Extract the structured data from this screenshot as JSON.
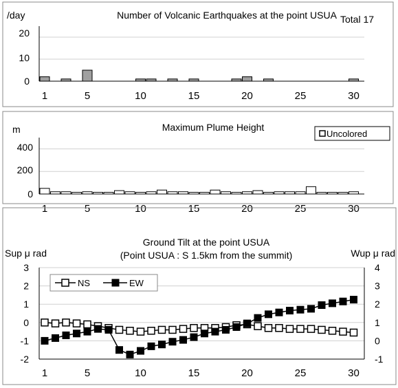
{
  "chart_data": [
    {
      "type": "bar",
      "title": "Number of Volcanic Earthquakes at the point USUA",
      "ylabel": "/day",
      "annotation": "Total 17",
      "x": [
        1,
        2,
        3,
        4,
        5,
        6,
        7,
        8,
        9,
        10,
        11,
        12,
        13,
        14,
        15,
        16,
        17,
        18,
        19,
        20,
        21,
        22,
        23,
        24,
        25,
        26,
        27,
        28,
        29,
        30
      ],
      "values": [
        2,
        0,
        1,
        0,
        5,
        0,
        0,
        0,
        0,
        1,
        1,
        0,
        1,
        0,
        1,
        0,
        0,
        0,
        1,
        2,
        0,
        1,
        0,
        0,
        0,
        0,
        0,
        0,
        0,
        1
      ],
      "ylim": [
        0,
        25
      ],
      "yticks": [
        "0",
        "10",
        "20"
      ],
      "xticks": [
        "1",
        "5",
        "10",
        "15",
        "20",
        "25",
        "30"
      ],
      "grid": true,
      "bar_fill": "#a0a0a0"
    },
    {
      "type": "bar",
      "title": "Maximum Plume Height",
      "ylabel": "m",
      "legend": [
        "Uncolored"
      ],
      "legend_position": "top-right",
      "x": [
        1,
        2,
        3,
        4,
        5,
        6,
        7,
        8,
        9,
        10,
        11,
        12,
        13,
        14,
        15,
        16,
        17,
        18,
        19,
        20,
        21,
        22,
        23,
        24,
        25,
        26,
        27,
        28,
        29,
        30
      ],
      "values": [
        50,
        20,
        20,
        15,
        20,
        15,
        15,
        30,
        20,
        15,
        20,
        35,
        20,
        20,
        15,
        15,
        35,
        20,
        15,
        20,
        30,
        15,
        20,
        20,
        20,
        65,
        15,
        15,
        15,
        20
      ],
      "ylim": [
        0,
        500
      ],
      "yticks": [
        "0",
        "200",
        "400"
      ],
      "xticks": [
        "1",
        "5",
        "10",
        "15",
        "20",
        "25",
        "30"
      ],
      "grid": true,
      "bar_fill": "#ffffff"
    },
    {
      "type": "line",
      "title": "Ground Tilt at the point USUA",
      "subtitle": "(Point USUA : S 1.5km from the summit)",
      "ylabel_left": "Sup μ rad",
      "ylabel_right": "Wup μ rad",
      "x": [
        1,
        2,
        3,
        4,
        5,
        6,
        7,
        8,
        9,
        10,
        11,
        12,
        13,
        14,
        15,
        16,
        17,
        18,
        19,
        20,
        21,
        22,
        23,
        24,
        25,
        26,
        27,
        28,
        29,
        30
      ],
      "series": [
        {
          "name": "NS",
          "axis": "left",
          "marker": "open-square",
          "values": [
            0,
            -0.05,
            0,
            -0.05,
            -0.1,
            -0.2,
            -0.3,
            -0.4,
            -0.45,
            -0.5,
            -0.45,
            -0.4,
            -0.4,
            -0.35,
            -0.3,
            -0.3,
            -0.3,
            -0.25,
            -0.15,
            -0.1,
            -0.2,
            -0.3,
            -0.3,
            -0.35,
            -0.35,
            -0.35,
            -0.4,
            -0.45,
            -0.5,
            -0.55
          ]
        },
        {
          "name": "EW",
          "axis": "right",
          "marker": "filled-square",
          "values": [
            0,
            0.15,
            0.3,
            0.4,
            0.5,
            0.65,
            0.6,
            -0.5,
            -0.75,
            -0.55,
            -0.3,
            -0.2,
            -0.05,
            0.05,
            0.2,
            0.4,
            0.5,
            0.6,
            0.75,
            0.95,
            1.25,
            1.45,
            1.55,
            1.65,
            1.7,
            1.75,
            1.95,
            2.05,
            2.15,
            2.25
          ]
        }
      ],
      "ylim_left": [
        -2,
        3
      ],
      "ylim_right": [
        -1,
        4
      ],
      "yticks_left": [
        "-2",
        "-1",
        "0",
        "1",
        "2",
        "3"
      ],
      "yticks_right": [
        "-1",
        "0",
        "1",
        "2",
        "3",
        "4"
      ],
      "xticks": [
        "1",
        "5",
        "10",
        "15",
        "20",
        "25",
        "30"
      ],
      "legend_position": "top-left",
      "grid": true
    }
  ]
}
